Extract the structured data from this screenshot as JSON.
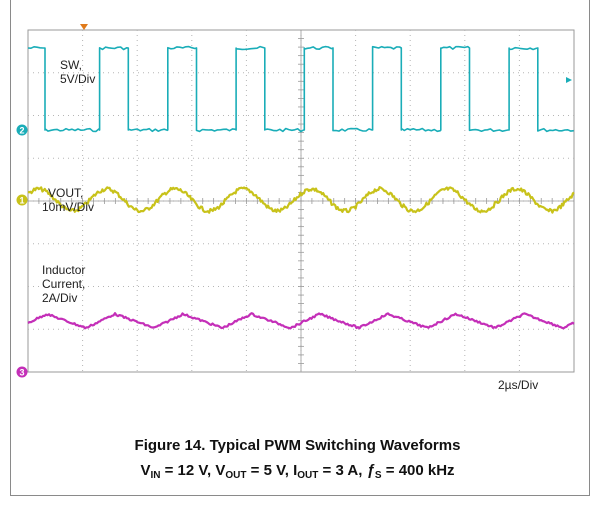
{
  "figure": {
    "title": "Figure 14. Typical PWM Switching Waveforms",
    "conditions": [
      {
        "name": "V",
        "sub": "IN",
        "value": "12 V"
      },
      {
        "name": "V",
        "sub": "OUT",
        "value": "5 V"
      },
      {
        "name": "I",
        "sub": "OUT",
        "value": "3 A"
      },
      {
        "name": "ƒ",
        "sub": "S",
        "value": "400 kHz"
      }
    ]
  },
  "chart_data": {
    "type": "line",
    "title": "",
    "xlabel": "2µs/Div",
    "ylabel": "",
    "grid": true,
    "x_divisions": 10,
    "y_divisions": 8,
    "x_unit": "µs",
    "x_per_div": 2,
    "x_range_us": [
      0,
      20
    ],
    "switching_frequency_khz": 400,
    "series": [
      {
        "name": "SW",
        "label_lines": [
          "SW,",
          "5V/Div"
        ],
        "channel": "2",
        "color": "#1aadb8",
        "volts_per_div": 5,
        "shape": "square",
        "high_v": 12,
        "low_v": 0,
        "duty": 0.42
      },
      {
        "name": "VOUT",
        "label_lines": [
          "VOUT,",
          "10mV/Div"
        ],
        "channel": "1",
        "color": "#c8c21a",
        "volts_per_div": 0.01,
        "shape": "sine",
        "ripple_mv_pp": 15
      },
      {
        "name": "Inductor Current",
        "label_lines": [
          "Inductor",
          "Current,",
          "2A/Div"
        ],
        "channel": "3",
        "color": "#c42fb8",
        "amps_per_div": 2,
        "shape": "triangle",
        "ripple_a_pp": 1.1,
        "average_a": 3
      }
    ],
    "channel_markers": [
      "2",
      "1",
      "3"
    ]
  }
}
